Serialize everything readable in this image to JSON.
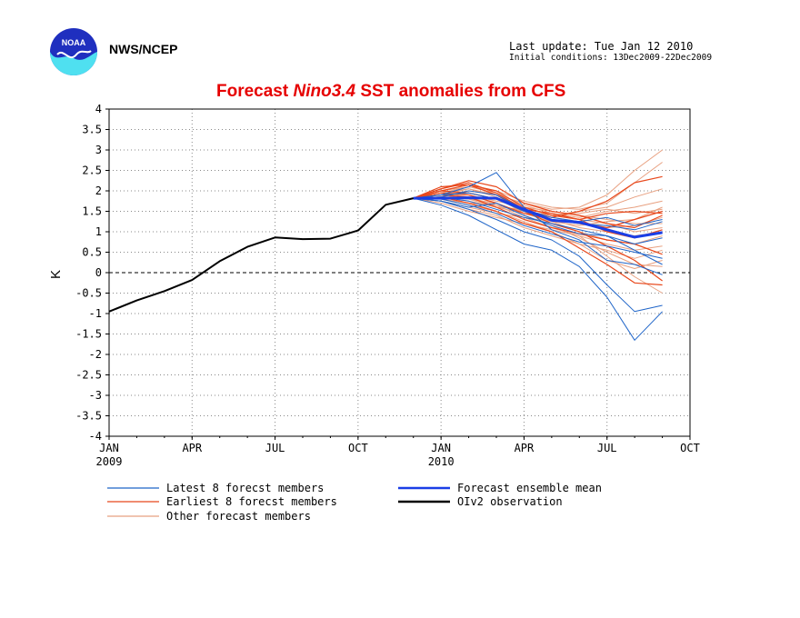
{
  "header": {
    "agency": "NWS/NCEP",
    "last_update": "Last update: Tue Jan 12 2010",
    "initial_conditions": "Initial conditions: 13Dec2009-22Dec2009",
    "logo_text": "NOAA"
  },
  "chart_data": {
    "type": "line",
    "title_prefix": "Forecast ",
    "title_italic": "Nino3.4",
    "title_suffix": " SST anomalies from CFS",
    "ylabel": "K",
    "ylim": [
      -4,
      4
    ],
    "yticks": [
      "4",
      "3.5",
      "3",
      "2.5",
      "2",
      "1.5",
      "1",
      "0.5",
      "0",
      "-0.5",
      "-1",
      "-1.5",
      "-2",
      "-2.5",
      "-3",
      "-3.5",
      "-4"
    ],
    "xlim": [
      0,
      21
    ],
    "xticks": [
      {
        "m": 0,
        "label": "JAN",
        "sub": "2009"
      },
      {
        "m": 3,
        "label": "APR",
        "sub": ""
      },
      {
        "m": 6,
        "label": "JUL",
        "sub": ""
      },
      {
        "m": 9,
        "label": "OCT",
        "sub": ""
      },
      {
        "m": 12,
        "label": "JAN",
        "sub": "2010"
      },
      {
        "m": 15,
        "label": "APR",
        "sub": ""
      },
      {
        "m": 18,
        "label": "JUL",
        "sub": ""
      },
      {
        "m": 21,
        "label": "OCT",
        "sub": ""
      }
    ],
    "grid": true,
    "colors": {
      "latest": "#1e64c8",
      "earliest": "#e8481c",
      "other": "#e8a080",
      "mean": "#1a3ee6",
      "obs": "#000000"
    },
    "legend": [
      {
        "label": "Latest 8 forecst members",
        "color": "#1e64c8",
        "bold": false
      },
      {
        "label": "Earliest 8 forecst members",
        "color": "#e8481c",
        "bold": false
      },
      {
        "label": "Other forecast members",
        "color": "#e8a080",
        "bold": false
      },
      {
        "label": "Forecast ensemble mean",
        "color": "#1a3ee6",
        "bold": true
      },
      {
        "label": "OIv2 observation",
        "color": "#000000",
        "bold": true
      }
    ],
    "forecast_x": [
      11,
      12,
      13,
      14,
      15,
      16,
      17,
      18,
      19,
      20
    ],
    "observation": {
      "x": [
        0,
        1,
        2,
        3,
        4,
        5,
        6,
        7,
        8,
        9,
        10,
        11
      ],
      "y": [
        -0.95,
        -0.68,
        -0.45,
        -0.18,
        0.28,
        0.63,
        0.86,
        0.82,
        0.83,
        1.03,
        1.66,
        1.82
      ]
    },
    "ensemble_mean": [
      1.82,
      1.82,
      1.83,
      1.82,
      1.55,
      1.28,
      1.23,
      1.05,
      0.87,
      0.98
    ],
    "latest_members": [
      [
        1.82,
        1.65,
        1.4,
        1.05,
        0.7,
        0.55,
        0.15,
        -0.6,
        -1.65,
        -0.95
      ],
      [
        1.82,
        1.75,
        1.55,
        1.3,
        1.0,
        0.8,
        0.4,
        -0.3,
        -0.95,
        -0.8
      ],
      [
        1.82,
        1.9,
        2.1,
        2.45,
        1.6,
        1.05,
        0.8,
        0.3,
        0.2,
        -0.05
      ],
      [
        1.82,
        1.85,
        1.75,
        1.55,
        1.35,
        1.2,
        1.05,
        0.9,
        0.55,
        0.2
      ],
      [
        1.82,
        1.8,
        1.65,
        1.45,
        1.15,
        0.95,
        0.75,
        0.65,
        0.5,
        0.35
      ],
      [
        1.82,
        1.9,
        1.95,
        1.8,
        1.5,
        1.3,
        1.2,
        1.15,
        1.05,
        1.25
      ],
      [
        1.82,
        1.75,
        1.6,
        1.7,
        1.4,
        1.15,
        0.95,
        0.9,
        0.7,
        0.85
      ],
      [
        1.82,
        1.85,
        2.0,
        1.9,
        1.55,
        1.35,
        1.25,
        1.35,
        1.15,
        1.3
      ]
    ],
    "earliest_members": [
      [
        1.82,
        2.05,
        2.2,
        1.95,
        1.55,
        1.35,
        1.5,
        1.75,
        2.2,
        2.35
      ],
      [
        1.82,
        2.0,
        2.15,
        2.0,
        1.6,
        1.4,
        1.3,
        1.45,
        1.5,
        1.45
      ],
      [
        1.82,
        1.95,
        1.9,
        1.7,
        1.45,
        1.3,
        1.2,
        1.1,
        1.3,
        1.5
      ],
      [
        1.82,
        1.9,
        1.85,
        1.6,
        1.3,
        1.1,
        0.95,
        0.8,
        0.7,
        0.45
      ],
      [
        1.82,
        2.1,
        2.15,
        1.9,
        1.5,
        1.2,
        1.0,
        0.65,
        0.3,
        -0.2
      ],
      [
        1.82,
        1.85,
        1.7,
        1.5,
        1.2,
        1.0,
        0.6,
        0.2,
        -0.25,
        -0.3
      ],
      [
        1.82,
        2.0,
        1.95,
        1.8,
        1.55,
        1.45,
        1.3,
        1.0,
        0.85,
        1.05
      ],
      [
        1.82,
        2.05,
        2.25,
        2.1,
        1.7,
        1.5,
        1.4,
        1.2,
        1.1,
        1.4
      ]
    ],
    "other_members": [
      [
        1.82,
        1.9,
        2.0,
        1.9,
        1.7,
        1.55,
        1.6,
        1.9,
        2.5,
        3.0
      ],
      [
        1.82,
        1.95,
        2.1,
        2.0,
        1.75,
        1.6,
        1.55,
        1.7,
        2.2,
        2.7
      ],
      [
        1.82,
        1.8,
        1.7,
        1.65,
        1.5,
        1.4,
        1.5,
        1.6,
        1.85,
        2.05
      ],
      [
        1.82,
        1.85,
        1.75,
        1.6,
        1.55,
        1.45,
        1.35,
        1.5,
        1.6,
        1.75
      ],
      [
        1.82,
        1.75,
        1.6,
        1.45,
        1.35,
        1.25,
        1.15,
        1.25,
        1.3,
        1.6
      ],
      [
        1.82,
        2.0,
        1.9,
        1.75,
        1.6,
        1.5,
        1.4,
        1.3,
        1.2,
        1.2
      ],
      [
        1.82,
        1.9,
        2.05,
        1.85,
        1.45,
        1.25,
        1.0,
        0.8,
        0.7,
        0.9
      ],
      [
        1.82,
        1.7,
        1.5,
        1.35,
        1.2,
        1.05,
        0.9,
        0.7,
        0.55,
        0.65
      ],
      [
        1.82,
        1.85,
        1.8,
        1.7,
        1.4,
        1.15,
        0.85,
        0.5,
        0.2,
        0.15
      ],
      [
        1.82,
        1.95,
        1.85,
        1.65,
        1.35,
        1.1,
        0.9,
        0.4,
        -0.1,
        -0.5
      ],
      [
        1.82,
        1.8,
        1.65,
        1.5,
        1.25,
        1.0,
        0.7,
        0.3,
        0.1,
        0.3
      ],
      [
        1.82,
        2.0,
        2.1,
        1.95,
        1.65,
        1.45,
        1.3,
        1.2,
        1.0,
        1.1
      ],
      [
        1.82,
        1.9,
        1.8,
        1.6,
        1.45,
        1.35,
        1.25,
        1.1,
        1.15,
        1.35
      ],
      [
        1.82,
        1.75,
        1.55,
        1.4,
        1.1,
        0.9,
        0.7,
        0.55,
        0.35,
        0.55
      ],
      [
        1.82,
        1.85,
        1.95,
        1.8,
        1.5,
        1.3,
        1.1,
        1.0,
        0.9,
        1.0
      ],
      [
        1.82,
        1.95,
        2.05,
        1.9,
        1.6,
        1.4,
        1.45,
        1.55,
        1.45,
        1.55
      ]
    ]
  }
}
